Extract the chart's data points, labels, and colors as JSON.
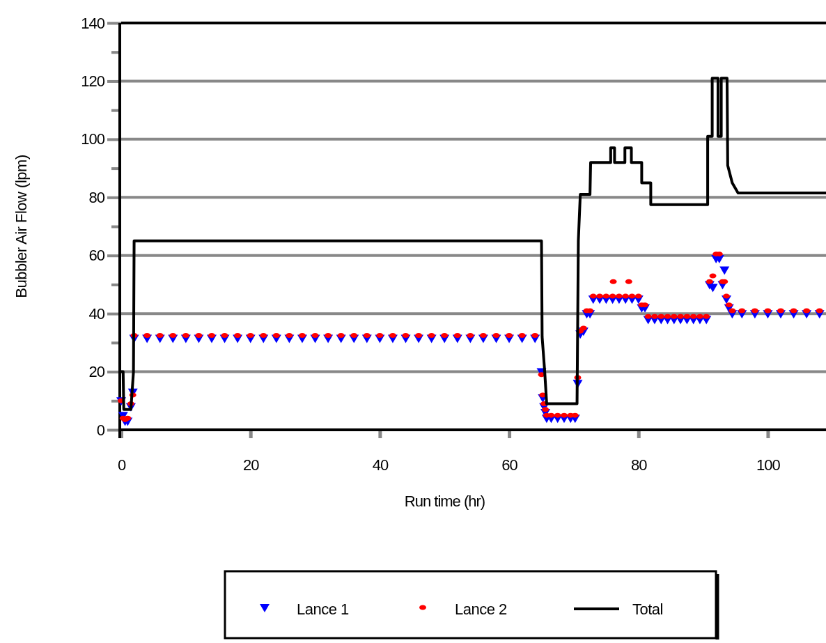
{
  "chart_data": {
    "type": "scatter",
    "xlabel": "Run time (hr)",
    "ylabel": "Bubbler Air Flow (lpm)",
    "xlim": [
      0,
      109
    ],
    "xticks": [
      0,
      20,
      40,
      60,
      80,
      100
    ],
    "ylim": [
      0,
      140
    ],
    "yticks": [
      0,
      {
        "value": 10,
        "label": null
      },
      20,
      {
        "value": 30,
        "label": null
      },
      40,
      {
        "value": 50,
        "label": null
      },
      60,
      {
        "value": 70,
        "label": null
      },
      80,
      {
        "value": 90,
        "label": null
      },
      100,
      {
        "value": 110,
        "label": null
      },
      120,
      {
        "value": 130,
        "label": null
      },
      140
    ],
    "grid": "y",
    "legend": "bottom",
    "series": [
      {
        "name": "Lance 1",
        "marker": "triangle",
        "color": "#0000ff",
        "x": [
          0,
          0.3,
          0.6,
          1,
          1.5,
          1.8,
          2,
          4,
          6,
          8,
          10,
          12,
          14,
          16,
          18,
          20,
          22,
          24,
          26,
          28,
          30,
          32,
          34,
          36,
          38,
          40,
          42,
          44,
          46,
          48,
          50,
          52,
          54,
          56,
          58,
          60,
          62,
          64,
          65,
          65.2,
          65.4,
          65.6,
          65.8,
          66.5,
          67.5,
          68.5,
          69.5,
          70.2,
          70.6,
          71,
          71.5,
          72,
          72.5,
          73,
          74,
          75,
          76,
          77,
          78,
          79,
          80,
          80.5,
          81,
          81.5,
          82.5,
          83.5,
          84.5,
          85.5,
          86.5,
          87.5,
          88.5,
          89.5,
          90.5,
          91,
          91.5,
          92,
          92.5,
          93,
          93.3,
          93.6,
          94,
          94.5,
          96,
          98,
          100,
          102,
          104,
          106,
          108
        ],
        "values": [
          10,
          5,
          3,
          3,
          8,
          13,
          31.5,
          31.5,
          31.5,
          31.5,
          31.5,
          31.5,
          31.5,
          31.5,
          31.5,
          31.5,
          31.5,
          31.5,
          31.5,
          31.5,
          31.5,
          31.5,
          31.5,
          31.5,
          31.5,
          31.5,
          31.5,
          31.5,
          31.5,
          31.5,
          31.5,
          31.5,
          31.5,
          31.5,
          31.5,
          31.5,
          31.5,
          31.5,
          20,
          11,
          8,
          6,
          4,
          4,
          4,
          4,
          4,
          4,
          16,
          33,
          34,
          40,
          40,
          45,
          45,
          45,
          45,
          45,
          45,
          45,
          45,
          42,
          42,
          38,
          38,
          38,
          38,
          38,
          38,
          38,
          38,
          38,
          38,
          50,
          49,
          59,
          59,
          50,
          55,
          45,
          42,
          40,
          40,
          40,
          40,
          40,
          40,
          40,
          40
        ]
      },
      {
        "name": "Lance 2",
        "marker": "circle",
        "color": "#ff0000",
        "x": [
          0,
          0.3,
          0.6,
          1,
          1.5,
          1.8,
          2,
          4,
          6,
          8,
          10,
          12,
          14,
          16,
          18,
          20,
          22,
          24,
          26,
          28,
          30,
          32,
          34,
          36,
          38,
          40,
          42,
          44,
          46,
          48,
          50,
          52,
          54,
          56,
          58,
          60,
          62,
          64,
          65,
          65.2,
          65.4,
          65.6,
          65.8,
          66.5,
          67.5,
          68.5,
          69.5,
          70.2,
          70.6,
          71,
          71.5,
          72,
          72.5,
          73,
          74,
          75,
          76,
          76.1,
          77,
          78,
          78.5,
          79,
          80,
          80.5,
          81,
          81.5,
          82.5,
          83.5,
          84.5,
          85.5,
          86.5,
          87.5,
          88.5,
          89.5,
          90.5,
          91,
          91.5,
          92,
          92.5,
          93,
          93.3,
          93.6,
          94,
          94.5,
          96,
          98,
          100,
          102,
          104,
          106,
          108
        ],
        "values": [
          10,
          4,
          3.5,
          4,
          9,
          12,
          32.5,
          32.5,
          32.5,
          32.5,
          32.5,
          32.5,
          32.5,
          32.5,
          32.5,
          32.5,
          32.5,
          32.5,
          32.5,
          32.5,
          32.5,
          32.5,
          32.5,
          32.5,
          32.5,
          32.5,
          32.5,
          32.5,
          32.5,
          32.5,
          32.5,
          32.5,
          32.5,
          32.5,
          32.5,
          32.5,
          32.5,
          32.5,
          19,
          12,
          9,
          7,
          5,
          5,
          5,
          5,
          5,
          5,
          18,
          34,
          35,
          41,
          41,
          46,
          46,
          46,
          46,
          51,
          46,
          46,
          51,
          46,
          46,
          43,
          43,
          39,
          39,
          39,
          39,
          39,
          39,
          39,
          39,
          39,
          39,
          51,
          53,
          60.5,
          60.5,
          51,
          51,
          46,
          43,
          41,
          41,
          41,
          41,
          41,
          41,
          41,
          41
        ]
      },
      {
        "name": "Total",
        "type": "line",
        "marker": "none",
        "color": "#000000",
        "x": [
          0,
          0.3,
          0.4,
          1.5,
          1.9,
          2,
          65,
          65.1,
          65.5,
          65.8,
          70.5,
          70.7,
          71,
          72.5,
          72.6,
          75.7,
          75.7,
          76.3,
          76.3,
          77.9,
          77.9,
          78.9,
          78.9,
          80.5,
          80.5,
          81.9,
          81.9,
          90.7,
          90.7,
          91.4,
          91.4,
          92.3,
          92.3,
          92.8,
          92.8,
          93.7,
          93.8,
          94.5,
          95.4,
          109
        ],
        "values": [
          20,
          20,
          7,
          7,
          20,
          65,
          65,
          32,
          20,
          9,
          9,
          65,
          81,
          81,
          92,
          92,
          97,
          97,
          92,
          92,
          97,
          97,
          92,
          92,
          85,
          85,
          77.5,
          77.5,
          101,
          101,
          121,
          121,
          101,
          101,
          121,
          121,
          91,
          85,
          81.5,
          81.5
        ]
      }
    ]
  }
}
